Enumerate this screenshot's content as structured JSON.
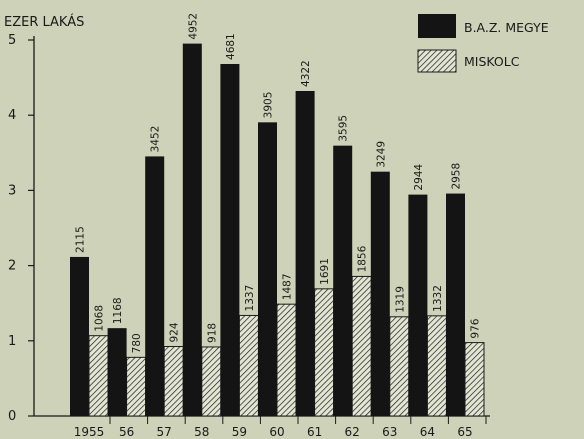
{
  "chart_data": {
    "type": "bar",
    "ylabel": "EZER LAKÁS",
    "ylim": [
      0,
      5
    ],
    "yticks": [
      "0",
      "1",
      "2",
      "3",
      "4",
      "5"
    ],
    "categories": [
      "1955",
      "56",
      "57",
      "58",
      "59",
      "60",
      "61",
      "62",
      "63",
      "64",
      "65"
    ],
    "series": [
      {
        "name": "B.A.Z. MEGYE",
        "values": [
          2115,
          1168,
          3452,
          4952,
          4681,
          3905,
          4322,
          3595,
          3249,
          2944,
          2958
        ],
        "labels": [
          "2115",
          "1168",
          "3452",
          "4952",
          "4681",
          "3905",
          "4322",
          "3595",
          "3249",
          "2944",
          "2958"
        ],
        "color": "#141414",
        "pattern": "solid"
      },
      {
        "name": "MISKOLC",
        "values": [
          1068,
          780,
          924,
          918,
          1337,
          1487,
          1691,
          1856,
          1319,
          1332,
          976
        ],
        "labels": [
          "1068",
          "780",
          "924",
          "918",
          "1337",
          "1487",
          "1691",
          "1856",
          "1319",
          "1332",
          "976"
        ],
        "color": "#141414",
        "pattern": "hatched"
      }
    ],
    "legend_position": "top-right",
    "grid": false
  }
}
